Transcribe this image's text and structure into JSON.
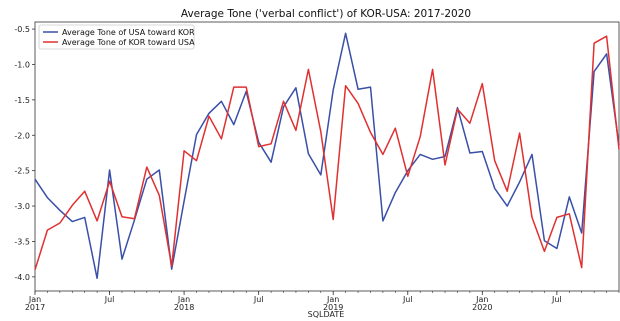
{
  "chart_data": {
    "type": "line",
    "title": "Average Tone ('verbal conflict') of KOR-USA: 2017-2020",
    "xlabel": "SQLDATE",
    "ylabel": "",
    "ylim": [
      -4.2,
      -0.4
    ],
    "yticks": [
      -4.0,
      -3.5,
      -3.0,
      -2.5,
      -2.0,
      -1.5,
      -1.0,
      -0.5
    ],
    "ytick_labels": [
      "-4.0",
      "-3.5",
      "-3.0",
      "-2.5",
      "-2.0",
      "-1.5",
      "-1.0",
      "-0.5"
    ],
    "x": [
      "2017-01",
      "2017-02",
      "2017-03",
      "2017-04",
      "2017-05",
      "2017-06",
      "2017-07",
      "2017-08",
      "2017-09",
      "2017-10",
      "2017-11",
      "2017-12",
      "2018-01",
      "2018-02",
      "2018-03",
      "2018-04",
      "2018-05",
      "2018-06",
      "2018-07",
      "2018-08",
      "2018-09",
      "2018-10",
      "2018-11",
      "2018-12",
      "2019-01",
      "2019-02",
      "2019-03",
      "2019-04",
      "2019-05",
      "2019-06",
      "2019-07",
      "2019-08",
      "2019-09",
      "2019-10",
      "2019-11",
      "2019-12",
      "2020-01",
      "2020-02",
      "2020-03",
      "2020-04",
      "2020-05",
      "2020-06",
      "2020-07",
      "2020-08",
      "2020-09",
      "2020-10",
      "2020-11",
      "2020-12"
    ],
    "xtick_labels": [
      {
        "month": "2017-01",
        "line1": "Jan",
        "line2": "2017"
      },
      {
        "month": "2017-07",
        "line1": "Jul",
        "line2": ""
      },
      {
        "month": "2018-01",
        "line1": "Jan",
        "line2": "2018"
      },
      {
        "month": "2018-07",
        "line1": "Jul",
        "line2": ""
      },
      {
        "month": "2019-01",
        "line1": "Jan",
        "line2": "2019"
      },
      {
        "month": "2019-07",
        "line1": "Jul",
        "line2": ""
      },
      {
        "month": "2020-01",
        "line1": "Jan",
        "line2": "2020"
      },
      {
        "month": "2020-07",
        "line1": "Jul",
        "line2": ""
      }
    ],
    "series": [
      {
        "name": "Average Tone of USA toward KOR",
        "color": "#3a4fa8",
        "values": [
          -2.62,
          -2.88,
          -3.06,
          -3.22,
          -3.16,
          -4.02,
          -2.49,
          -3.75,
          -3.2,
          -2.62,
          -2.49,
          -3.89,
          -2.93,
          -1.99,
          -1.69,
          -1.52,
          -1.85,
          -1.38,
          -2.1,
          -2.38,
          -1.6,
          -1.33,
          -2.26,
          -2.56,
          -1.36,
          -0.56,
          -1.35,
          -1.32,
          -3.21,
          -2.81,
          -2.5,
          -2.27,
          -2.34,
          -2.3,
          -1.61,
          -2.25,
          -2.23,
          -2.75,
          -3.0,
          -2.66,
          -2.27,
          -3.49,
          -3.6,
          -2.87,
          -3.38,
          -1.1,
          -0.85,
          -2.14
        ]
      },
      {
        "name": "Average Tone of KOR toward USA",
        "color": "#e03030",
        "values": [
          -3.9,
          -3.34,
          -3.24,
          -2.99,
          -2.79,
          -3.21,
          -2.65,
          -3.15,
          -3.18,
          -2.45,
          -2.85,
          -3.85,
          -2.22,
          -2.36,
          -1.73,
          -2.05,
          -1.32,
          -1.32,
          -2.16,
          -2.12,
          -1.52,
          -1.93,
          -1.07,
          -1.95,
          -3.19,
          -1.3,
          -1.55,
          -1.96,
          -2.27,
          -1.9,
          -2.58,
          -2.02,
          -1.07,
          -2.42,
          -1.63,
          -1.83,
          -1.27,
          -2.36,
          -2.79,
          -1.97,
          -3.16,
          -3.64,
          -3.16,
          -3.11,
          -3.87,
          -0.7,
          -0.6,
          -2.2
        ]
      }
    ],
    "legend_position": "top-left",
    "grid": false
  }
}
